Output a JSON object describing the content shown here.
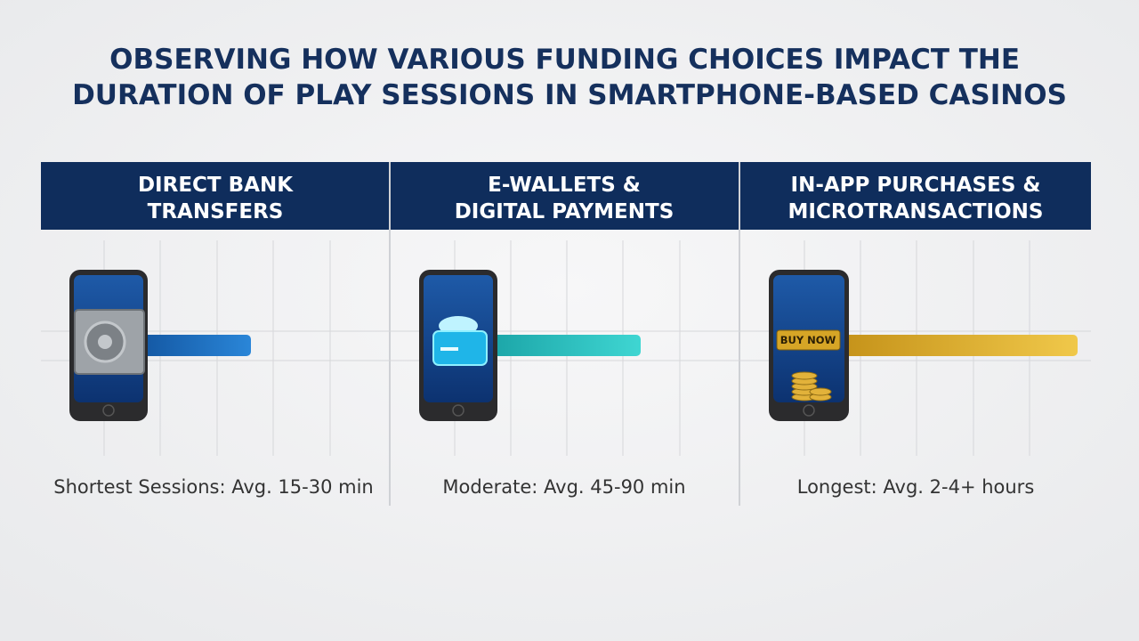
{
  "title": {
    "lines": [
      "OBSERVING HOW VARIOUS FUNDING CHOICES IMPACT THE",
      "DURATION OF PLAY SESSIONS IN SMARTPHONE-BASED CASINOS"
    ]
  },
  "columns": [
    {
      "header": [
        "DIRECT BANK",
        "TRANSFERS"
      ],
      "caption": "Shortest Sessions: Avg. 15-30 min"
    },
    {
      "header": [
        "E-WALLETS &",
        "DIGITAL PAYMENTS"
      ],
      "caption": "Moderate: Avg. 45-90 min"
    },
    {
      "header": [
        "IN-APP PURCHASES &",
        "MICROTRANSACTIONS"
      ],
      "caption": "Longest: Avg. 2-4+ hours",
      "button": "BUY NOW"
    }
  ]
}
